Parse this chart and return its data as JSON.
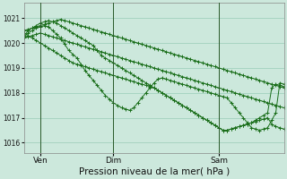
{
  "background_color": "#cce8dc",
  "grid_color": "#99ccb8",
  "line_color": "#1a6e1a",
  "marker_color": "#1a6e1a",
  "xlabel": "Pression niveau de la mer( hPa )",
  "xlabel_fontsize": 7.5,
  "yticks": [
    1016,
    1017,
    1018,
    1019,
    1020,
    1021
  ],
  "ylim": [
    1015.6,
    1021.6
  ],
  "xtick_labels": [
    "Ven",
    "Dim",
    "Sam"
  ],
  "xtick_positions": [
    4,
    22,
    48
  ],
  "n_points": 65,
  "vline_x": [
    4,
    22,
    48
  ],
  "series": [
    [
      1020.4,
      1020.3,
      1020.2,
      1020.1,
      1020.0,
      1019.9,
      1019.8,
      1019.7,
      1019.6,
      1019.5,
      1019.4,
      1019.3,
      1019.2,
      1019.15,
      1019.1,
      1019.05,
      1019.0,
      1018.95,
      1018.9,
      1018.85,
      1018.8,
      1018.75,
      1018.7,
      1018.65,
      1018.6,
      1018.55,
      1018.5,
      1018.45,
      1018.4,
      1018.35,
      1018.3,
      1018.25,
      1018.2,
      1018.1,
      1018.0,
      1017.9,
      1017.8,
      1017.7,
      1017.6,
      1017.5,
      1017.4,
      1017.3,
      1017.2,
      1017.1,
      1017.0,
      1016.9,
      1016.8,
      1016.7,
      1016.6,
      1016.5,
      1016.5,
      1016.55,
      1016.6,
      1016.65,
      1016.7,
      1016.75,
      1016.8,
      1016.9,
      1017.0,
      1017.1,
      1017.2,
      1018.2,
      1018.35,
      1018.3,
      1018.25
    ],
    [
      1020.5,
      1020.55,
      1020.6,
      1020.65,
      1020.7,
      1020.75,
      1020.8,
      1020.85,
      1020.9,
      1020.95,
      1020.9,
      1020.85,
      1020.8,
      1020.75,
      1020.7,
      1020.65,
      1020.6,
      1020.55,
      1020.5,
      1020.45,
      1020.4,
      1020.35,
      1020.3,
      1020.25,
      1020.2,
      1020.15,
      1020.1,
      1020.05,
      1020.0,
      1019.95,
      1019.9,
      1019.85,
      1019.8,
      1019.75,
      1019.7,
      1019.65,
      1019.6,
      1019.55,
      1019.5,
      1019.45,
      1019.4,
      1019.35,
      1019.3,
      1019.25,
      1019.2,
      1019.15,
      1019.1,
      1019.05,
      1019.0,
      1018.95,
      1018.9,
      1018.85,
      1018.8,
      1018.75,
      1018.7,
      1018.65,
      1018.6,
      1018.55,
      1018.5,
      1018.45,
      1018.4,
      1018.35,
      1018.3,
      1018.25,
      1018.2
    ],
    [
      1020.2,
      1020.25,
      1020.3,
      1020.35,
      1020.4,
      1020.35,
      1020.3,
      1020.25,
      1020.2,
      1020.15,
      1020.1,
      1020.05,
      1020.0,
      1019.95,
      1019.9,
      1019.85,
      1019.8,
      1019.75,
      1019.7,
      1019.65,
      1019.6,
      1019.55,
      1019.5,
      1019.45,
      1019.4,
      1019.35,
      1019.3,
      1019.25,
      1019.2,
      1019.15,
      1019.1,
      1019.05,
      1019.0,
      1018.95,
      1018.9,
      1018.85,
      1018.8,
      1018.75,
      1018.7,
      1018.65,
      1018.6,
      1018.55,
      1018.5,
      1018.45,
      1018.4,
      1018.35,
      1018.3,
      1018.25,
      1018.2,
      1018.15,
      1018.1,
      1018.05,
      1018.0,
      1017.95,
      1017.9,
      1017.85,
      1017.8,
      1017.75,
      1017.7,
      1017.65,
      1017.6,
      1017.55,
      1017.5,
      1017.45,
      1017.4
    ],
    [
      1020.3,
      1020.5,
      1020.6,
      1020.7,
      1020.8,
      1020.85,
      1020.9,
      1020.85,
      1020.8,
      1020.7,
      1020.6,
      1020.5,
      1020.4,
      1020.3,
      1020.2,
      1020.1,
      1020.0,
      1019.9,
      1019.7,
      1019.5,
      1019.4,
      1019.3,
      1019.2,
      1019.1,
      1019.0,
      1018.9,
      1018.8,
      1018.7,
      1018.6,
      1018.5,
      1018.4,
      1018.3,
      1018.2,
      1018.1,
      1018.0,
      1017.9,
      1017.8,
      1017.7,
      1017.6,
      1017.5,
      1017.4,
      1017.3,
      1017.2,
      1017.1,
      1017.0,
      1016.9,
      1016.8,
      1016.7,
      1016.6,
      1016.5,
      1016.5,
      1016.55,
      1016.6,
      1016.65,
      1016.7,
      1016.75,
      1016.8,
      1016.85,
      1016.9,
      1016.95,
      1017.0,
      1016.75,
      1016.65,
      1016.6,
      1016.55
    ],
    [
      1020.25,
      1020.4,
      1020.5,
      1020.6,
      1020.65,
      1020.7,
      1020.65,
      1020.5,
      1020.35,
      1020.2,
      1019.95,
      1019.7,
      1019.55,
      1019.4,
      1019.15,
      1018.9,
      1018.7,
      1018.5,
      1018.3,
      1018.1,
      1017.9,
      1017.75,
      1017.6,
      1017.5,
      1017.4,
      1017.35,
      1017.3,
      1017.4,
      1017.6,
      1017.8,
      1018.0,
      1018.2,
      1018.4,
      1018.55,
      1018.6,
      1018.55,
      1018.5,
      1018.45,
      1018.4,
      1018.35,
      1018.3,
      1018.25,
      1018.2,
      1018.15,
      1018.1,
      1018.05,
      1018.0,
      1017.95,
      1017.9,
      1017.85,
      1017.8,
      1017.6,
      1017.4,
      1017.2,
      1017.0,
      1016.8,
      1016.6,
      1016.55,
      1016.5,
      1016.55,
      1016.6,
      1016.9,
      1017.2,
      1018.4,
      1018.35
    ]
  ]
}
